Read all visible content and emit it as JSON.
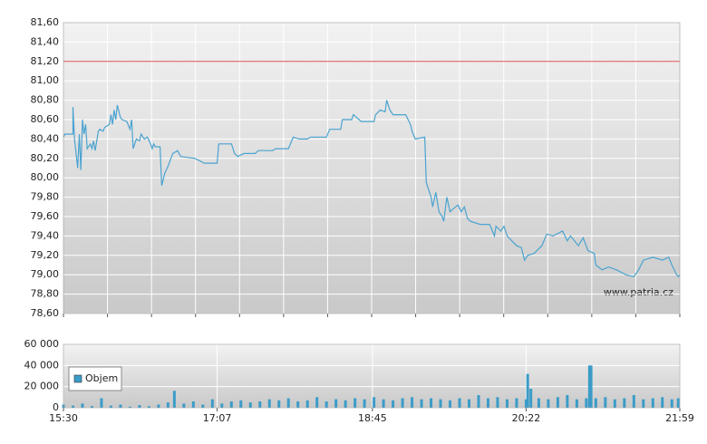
{
  "chart_data": [
    {
      "type": "line",
      "color": "#4aa3d0",
      "annotation": "www.patria.cz",
      "reference_line": 81.2,
      "reference_color": "#e05050",
      "xlim": [
        "15:30",
        "21:59"
      ],
      "ylim": [
        78.6,
        81.6
      ],
      "yticks": [
        {
          "value": 78.6,
          "label": "78,60"
        },
        {
          "value": 78.8,
          "label": "78,80"
        },
        {
          "value": 79.0,
          "label": "79,00"
        },
        {
          "value": 79.2,
          "label": "79,20"
        },
        {
          "value": 79.4,
          "label": "79,40"
        },
        {
          "value": 79.6,
          "label": "79,60"
        },
        {
          "value": 79.8,
          "label": "79,80"
        },
        {
          "value": 80.0,
          "label": "80,00"
        },
        {
          "value": 80.2,
          "label": "80,20"
        },
        {
          "value": 80.4,
          "label": "80,40"
        },
        {
          "value": 80.6,
          "label": "80,60"
        },
        {
          "value": 80.8,
          "label": "80,80"
        },
        {
          "value": 81.0,
          "label": "81,00"
        },
        {
          "value": 81.2,
          "label": "81,20"
        },
        {
          "value": 81.4,
          "label": "81,40"
        },
        {
          "value": 81.6,
          "label": "81,60"
        }
      ],
      "x": [
        "15:30",
        "15:31",
        "15:36",
        "15:36",
        "15:37",
        "15:39",
        "15:40",
        "15:41",
        "15:42",
        "15:43",
        "15:44",
        "15:45",
        "15:47",
        "15:48",
        "15:49",
        "15:50",
        "15:52",
        "15:53",
        "15:55",
        "15:56",
        "15:59",
        "16:00",
        "16:01",
        "16:02",
        "16:03",
        "16:04",
        "16:06",
        "16:07",
        "16:10",
        "16:12",
        "16:13",
        "16:14",
        "16:16",
        "16:18",
        "16:19",
        "16:21",
        "16:23",
        "16:25",
        "16:26",
        "16:27",
        "16:28",
        "16:31",
        "16:32",
        "16:34",
        "16:36",
        "16:39",
        "16:42",
        "16:44",
        "16:53",
        "16:59",
        "17:07",
        "17:08",
        "17:16",
        "17:18",
        "17:20",
        "17:24",
        "17:31",
        "17:33",
        "17:42",
        "17:44",
        "17:52",
        "17:55",
        "17:59",
        "18:04",
        "18:06",
        "18:16",
        "18:18",
        "18:25",
        "18:26",
        "18:32",
        "18:33",
        "18:38",
        "18:46",
        "18:47",
        "18:50",
        "18:53",
        "18:54",
        "18:56",
        "18:58",
        "19:06",
        "19:09",
        "19:10",
        "19:12",
        "19:18",
        "19:19",
        "19:22",
        "19:23",
        "19:25",
        "19:27",
        "19:29",
        "19:30",
        "19:32",
        "19:34",
        "19:36",
        "19:39",
        "19:41",
        "19:43",
        "19:45",
        "19:47",
        "19:53",
        "19:59",
        "20:02",
        "20:03",
        "20:06",
        "20:08",
        "20:10",
        "20:13",
        "20:16",
        "20:19",
        "20:21",
        "20:23",
        "20:27",
        "20:32",
        "20:35",
        "20:39",
        "20:45",
        "20:48",
        "20:50",
        "20:55",
        "20:58",
        "21:01",
        "21:05",
        "21:06",
        "21:10",
        "21:14",
        "21:19",
        "21:25",
        "21:30",
        "21:33",
        "21:36",
        "21:42",
        "21:48",
        "21:52",
        "21:54",
        "21:57",
        "21:58",
        "21:59"
      ],
      "values": [
        80.42,
        80.45,
        80.45,
        80.73,
        80.4,
        80.1,
        80.45,
        80.08,
        80.6,
        80.45,
        80.55,
        80.3,
        80.35,
        80.3,
        80.38,
        80.28,
        80.48,
        80.5,
        80.48,
        80.52,
        80.55,
        80.65,
        80.55,
        80.7,
        80.6,
        80.75,
        80.62,
        80.6,
        80.58,
        80.5,
        80.6,
        80.3,
        80.4,
        80.38,
        80.45,
        80.4,
        80.42,
        80.35,
        80.3,
        80.35,
        80.32,
        80.32,
        79.92,
        80.05,
        80.12,
        80.25,
        80.28,
        80.22,
        80.2,
        80.15,
        80.15,
        80.35,
        80.35,
        80.25,
        80.22,
        80.25,
        80.25,
        80.28,
        80.28,
        80.3,
        80.3,
        80.42,
        80.4,
        80.4,
        80.42,
        80.42,
        80.5,
        80.5,
        80.6,
        80.6,
        80.65,
        80.58,
        80.58,
        80.65,
        80.7,
        80.68,
        80.8,
        80.7,
        80.65,
        80.65,
        80.55,
        80.48,
        80.4,
        80.42,
        79.95,
        79.8,
        79.7,
        79.85,
        79.65,
        79.6,
        79.55,
        79.8,
        79.65,
        79.68,
        79.72,
        79.65,
        79.7,
        79.58,
        79.55,
        79.52,
        79.52,
        79.4,
        79.5,
        79.45,
        79.5,
        79.4,
        79.35,
        79.3,
        79.28,
        79.15,
        79.2,
        79.22,
        79.3,
        79.42,
        79.4,
        79.45,
        79.35,
        79.4,
        79.3,
        79.38,
        79.25,
        79.22,
        79.1,
        79.05,
        79.08,
        79.05,
        79.0,
        78.98,
        79.05,
        79.15,
        79.18,
        79.15,
        79.18,
        79.1,
        79.0,
        78.98,
        79.0
      ]
    },
    {
      "type": "bar",
      "xlim": [
        "15:30",
        "21:59"
      ],
      "xticks": [
        "15:30",
        "17:07",
        "18:45",
        "20:22",
        "21:59"
      ],
      "ylim": [
        0,
        60000
      ],
      "yticks": [
        0,
        {
          "value": 20000,
          "label": "20 000"
        },
        {
          "value": 40000,
          "label": "40 000"
        },
        {
          "value": 60000,
          "label": "60 000"
        }
      ],
      "x": [
        "15:30",
        "15:36",
        "15:42",
        "15:48",
        "15:54",
        "16:00",
        "16:06",
        "16:12",
        "16:18",
        "16:24",
        "16:30",
        "16:36",
        "16:40",
        "16:46",
        "16:52",
        "16:58",
        "17:04",
        "17:10",
        "17:16",
        "17:22",
        "17:28",
        "17:34",
        "17:40",
        "17:46",
        "17:52",
        "17:58",
        "18:04",
        "18:10",
        "18:16",
        "18:22",
        "18:28",
        "18:34",
        "18:40",
        "18:46",
        "18:52",
        "18:58",
        "19:04",
        "19:10",
        "19:16",
        "19:22",
        "19:28",
        "19:34",
        "19:40",
        "19:46",
        "19:52",
        "19:58",
        "20:04",
        "20:10",
        "20:16",
        "20:22",
        "20:23",
        "20:25",
        "20:30",
        "20:36",
        "20:42",
        "20:48",
        "20:54",
        "21:00",
        "21:02",
        "21:03",
        "21:06",
        "21:12",
        "21:18",
        "21:24",
        "21:30",
        "21:36",
        "21:42",
        "21:48",
        "21:54",
        "21:58"
      ],
      "series": [
        {
          "name": "Objem",
          "color": "#3a9cc8",
          "values": [
            3000,
            2000,
            4000,
            1500,
            9000,
            2000,
            3000,
            1000,
            2500,
            1500,
            3000,
            5000,
            16000,
            4000,
            6000,
            3000,
            8000,
            4000,
            6000,
            7000,
            5000,
            6000,
            8000,
            7000,
            9000,
            6000,
            7000,
            10000,
            6000,
            8000,
            7000,
            9000,
            8000,
            10000,
            8000,
            7000,
            9000,
            10000,
            8000,
            9000,
            8000,
            7000,
            9000,
            8000,
            12000,
            9000,
            10000,
            8000,
            9000,
            8000,
            32000,
            18000,
            9000,
            8000,
            10000,
            12000,
            8000,
            9000,
            40000,
            40000,
            9000,
            10000,
            8000,
            9000,
            12000,
            8000,
            9000,
            10000,
            8000,
            9000
          ]
        }
      ]
    }
  ]
}
